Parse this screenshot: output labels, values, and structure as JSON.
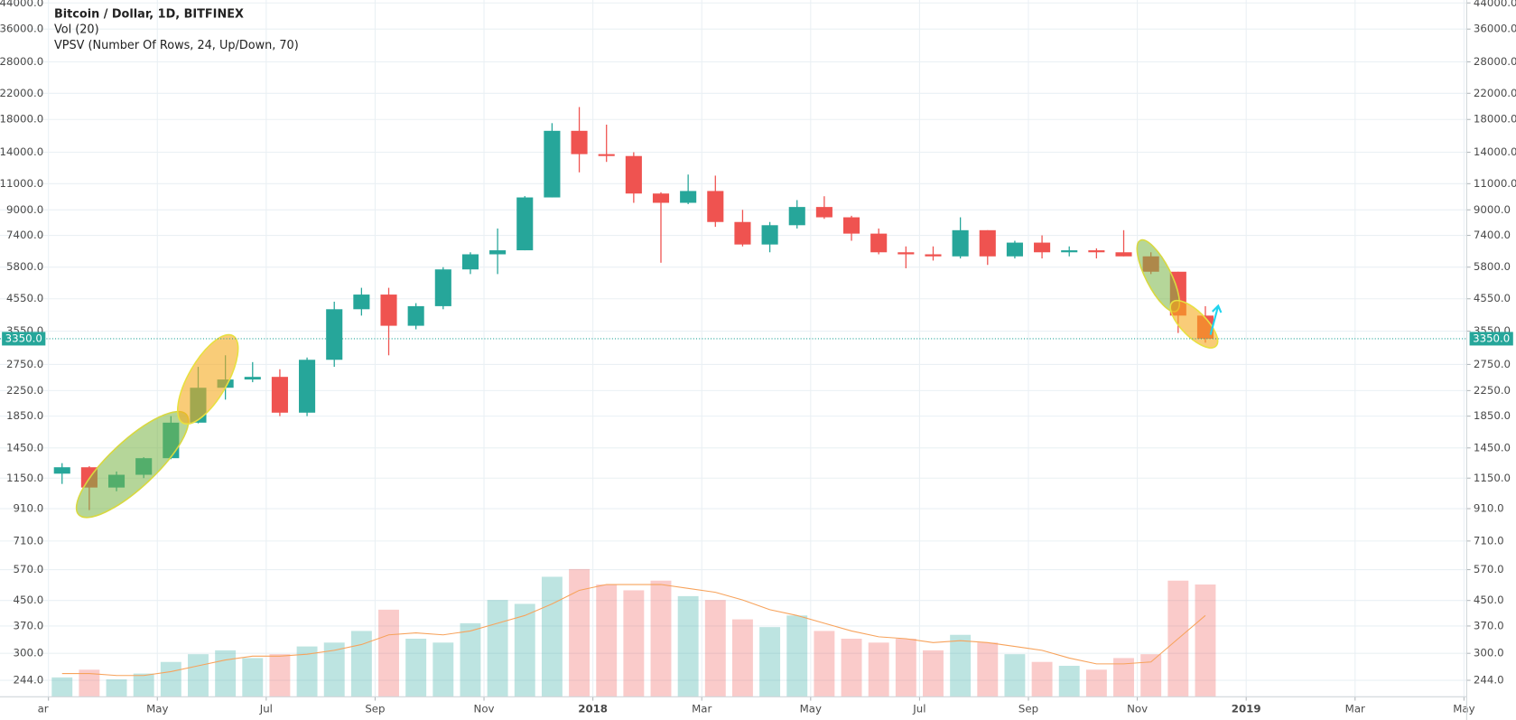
{
  "header": {
    "title": "Bitcoin / Dollar, 1D, BITFINEX",
    "indicators": [
      "Vol (20)",
      "VPSV (Number Of Rows, 24, Up/Down, 70)"
    ]
  },
  "chart_data": {
    "type": "candlestick",
    "log_scale": true,
    "grid": true,
    "up_color": "#26a69a",
    "down_color": "#ef5350",
    "ma_color": "#f7a35c",
    "xlim": [
      1.11,
      28.05
    ],
    "ylim": [
      215,
      45000
    ],
    "y2lim": [
      0,
      100
    ],
    "xticks": [
      {
        "value": 2,
        "label": "ar"
      },
      {
        "value": 4,
        "label": "May"
      },
      {
        "value": 6,
        "label": "Jul"
      },
      {
        "value": 8,
        "label": "Sep"
      },
      {
        "value": 10,
        "label": "Nov"
      },
      {
        "value": 12,
        "label": "2018"
      },
      {
        "value": 14,
        "label": "Mar"
      },
      {
        "value": 16,
        "label": "May"
      },
      {
        "value": 18,
        "label": "Jul"
      },
      {
        "value": 20,
        "label": "Sep"
      },
      {
        "value": 22,
        "label": "Nov"
      },
      {
        "value": 24,
        "label": "2019"
      },
      {
        "value": 26,
        "label": "Mar"
      },
      {
        "value": 28,
        "label": "May"
      }
    ],
    "yticks": [
      {
        "value": 44000,
        "label": "44000.0"
      },
      {
        "value": 36000,
        "label": "36000.0"
      },
      {
        "value": 28000,
        "label": "28000.0"
      },
      {
        "value": 22000,
        "label": "22000.0"
      },
      {
        "value": 18000,
        "label": "18000.0"
      },
      {
        "value": 14000,
        "label": "14000.0"
      },
      {
        "value": 11000,
        "label": "11000.0"
      },
      {
        "value": 9000,
        "label": "9000.0"
      },
      {
        "value": 7400,
        "label": "7400.0"
      },
      {
        "value": 5800,
        "label": "5800.0"
      },
      {
        "value": 4550,
        "label": "4550.0"
      },
      {
        "value": 3550,
        "label": "3550.0"
      },
      {
        "value": 2750,
        "label": "2750.0"
      },
      {
        "value": 2250,
        "label": "2250.0"
      },
      {
        "value": 1850,
        "label": "1850.0"
      },
      {
        "value": 1450,
        "label": "1450.0"
      },
      {
        "value": 1150,
        "label": "1150.0"
      },
      {
        "value": 910,
        "label": "910.0"
      },
      {
        "value": 710,
        "label": "710.0"
      },
      {
        "value": 570,
        "label": "570.0"
      },
      {
        "value": 450,
        "label": "450.0"
      },
      {
        "value": 370,
        "label": "370.0"
      },
      {
        "value": 300,
        "label": "300.0"
      },
      {
        "value": 244,
        "label": "244.0"
      }
    ],
    "last_price": {
      "value": 3350,
      "label": "3350.0"
    },
    "candles": {
      "x": [
        2.25,
        2.75,
        3.25,
        3.75,
        4.25,
        4.75,
        5.25,
        5.75,
        6.25,
        6.75,
        7.25,
        7.75,
        8.25,
        8.75,
        9.25,
        9.75,
        10.25,
        10.75,
        11.25,
        11.75,
        12.25,
        12.75,
        13.25,
        13.75,
        14.25,
        14.75,
        15.25,
        15.75,
        16.25,
        16.75,
        17.25,
        17.75,
        18.25,
        18.75,
        19.25,
        19.75,
        20.25,
        20.75,
        21.25,
        21.75,
        22.25,
        22.75,
        23.25
      ],
      "open": [
        1190,
        1250,
        1070,
        1180,
        1340,
        1760,
        2300,
        2450,
        2500,
        1900,
        2850,
        4200,
        4700,
        3700,
        4300,
        5700,
        6400,
        6600,
        9900,
        16500,
        13800,
        13600,
        10200,
        9500,
        10400,
        8200,
        6900,
        8000,
        9200,
        8500,
        7500,
        6500,
        6400,
        6300,
        7700,
        6300,
        7000,
        6500,
        6600,
        6500,
        6300,
        5600,
        4000
      ],
      "high": [
        1290,
        1260,
        1210,
        1350,
        1850,
        2700,
        2950,
        2800,
        2650,
        2900,
        4450,
        4950,
        4950,
        4400,
        5800,
        6500,
        7800,
        10000,
        17500,
        19800,
        17300,
        14000,
        10300,
        11800,
        11700,
        9000,
        8200,
        9700,
        9990,
        8600,
        7800,
        6800,
        6800,
        8500,
        7700,
        7100,
        7400,
        6800,
        6700,
        7700,
        6500,
        5600,
        4300
      ],
      "low": [
        1100,
        900,
        1040,
        1150,
        1330,
        1750,
        2100,
        2400,
        1850,
        1850,
        2700,
        4000,
        2950,
        3600,
        4200,
        5500,
        5500,
        6600,
        9900,
        12000,
        13000,
        9500,
        6000,
        9400,
        7900,
        6800,
        6500,
        7800,
        8400,
        7100,
        6400,
        5750,
        6100,
        6200,
        5900,
        6200,
        6200,
        6300,
        6200,
        6300,
        5500,
        3500,
        3250
      ],
      "close": [
        1250,
        1070,
        1180,
        1340,
        1760,
        2300,
        2450,
        2500,
        1900,
        2850,
        4200,
        4700,
        3700,
        4300,
        5700,
        6400,
        6600,
        9900,
        16500,
        13800,
        13600,
        10200,
        9500,
        10400,
        8200,
        6900,
        8000,
        9200,
        8500,
        7500,
        6500,
        6400,
        6300,
        7700,
        6300,
        7000,
        6500,
        6600,
        6500,
        6300,
        5600,
        4000,
        3350
      ]
    },
    "volume": {
      "axis": "y2",
      "values": [
        10,
        14,
        9,
        12,
        18,
        22,
        24,
        20,
        22,
        26,
        28,
        34,
        45,
        30,
        28,
        38,
        50,
        48,
        62,
        66,
        58,
        55,
        60,
        52,
        50,
        40,
        36,
        42,
        34,
        30,
        28,
        30,
        24,
        32,
        28,
        22,
        18,
        16,
        14,
        20,
        22,
        60,
        58
      ],
      "ma": [
        12,
        12,
        11,
        11,
        13,
        16,
        19,
        21,
        21,
        22,
        24,
        27,
        32,
        33,
        32,
        34,
        38,
        42,
        48,
        55,
        58,
        58,
        58,
        56,
        54,
        50,
        45,
        42,
        38,
        34,
        31,
        30,
        28,
        29,
        28,
        26,
        24,
        20,
        17,
        17,
        18,
        30,
        42
      ]
    }
  }
}
